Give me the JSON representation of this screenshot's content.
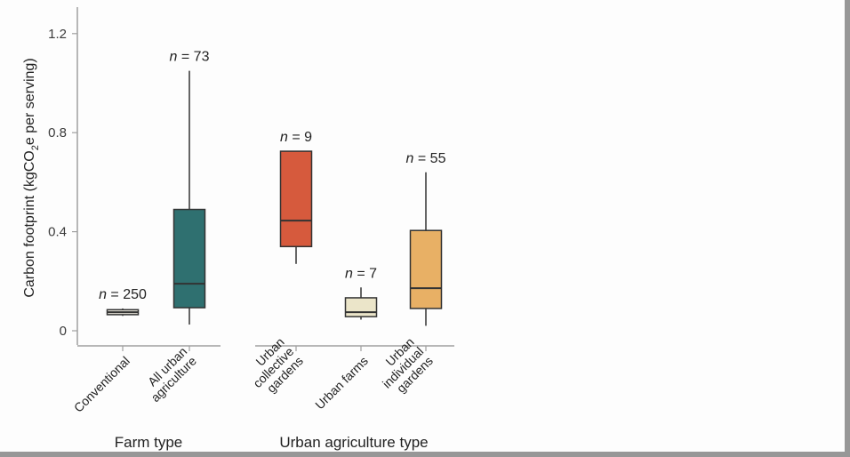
{
  "chart_data": {
    "type": "box",
    "ylabel_parts": [
      "Carbon footprint (kgCO",
      "2",
      "e per serving)"
    ],
    "ylim": [
      0,
      1.3
    ],
    "yticks": [
      {
        "value": 0,
        "label": "0"
      },
      {
        "value": 0.4,
        "label": "0.4"
      },
      {
        "value": 0.8,
        "label": "0.8"
      },
      {
        "value": 1.2,
        "label": "1.2"
      }
    ],
    "groups": [
      {
        "label": "Farm type",
        "categories": [
          0,
          1
        ]
      },
      {
        "label": "Urban agriculture type",
        "categories": [
          2,
          3,
          4
        ]
      }
    ],
    "categories": [
      {
        "lines": [
          "Conventional"
        ],
        "n_prefix": "n",
        "n_value": " = 250",
        "color": "#e9e6dc",
        "min": 0.06,
        "q1": 0.065,
        "median": 0.075,
        "q3": 0.085,
        "max": 0.09
      },
      {
        "lines": [
          "All urban",
          "agriculture"
        ],
        "n_prefix": "n",
        "n_value": " = 73",
        "color": "#2f7070",
        "min": 0.025,
        "q1": 0.093,
        "median": 0.19,
        "q3": 0.49,
        "max": 1.05
      },
      {
        "lines": [
          "Urban",
          "collective",
          "gardens"
        ],
        "n_prefix": "n",
        "n_value": " = 9",
        "color": "#d65a3d",
        "min": 0.27,
        "q1": 0.34,
        "median": 0.445,
        "q3": 0.725,
        "max": 0.725
      },
      {
        "lines": [
          "Urban farms"
        ],
        "n_prefix": "n",
        "n_value": " = 7",
        "color": "#ebe5c9",
        "min": 0.045,
        "q1": 0.057,
        "median": 0.075,
        "q3": 0.133,
        "max": 0.175
      },
      {
        "lines": [
          "Urban",
          "individual",
          "gardens"
        ],
        "n_prefix": "n",
        "n_value": " = 55",
        "color": "#e8b065",
        "min": 0.02,
        "q1": 0.09,
        "median": 0.172,
        "q3": 0.405,
        "max": 0.64
      }
    ]
  }
}
